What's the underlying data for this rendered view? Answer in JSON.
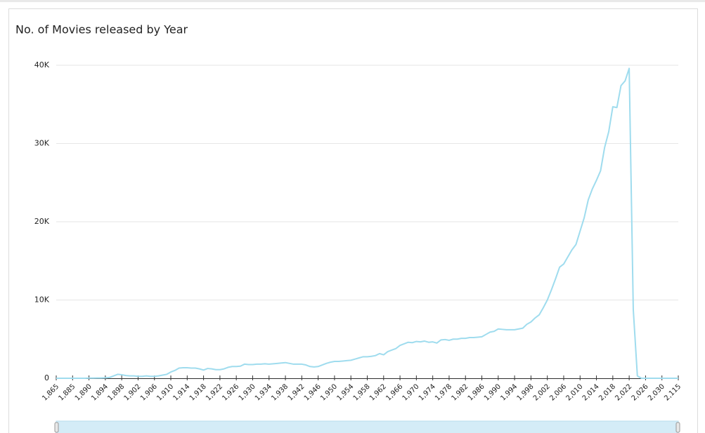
{
  "chart_data": {
    "type": "line",
    "title": "No. of Movies released by Year",
    "categories": [
      "1,865",
      null,
      null,
      null,
      "1,885",
      null,
      null,
      null,
      "1,890",
      null,
      null,
      null,
      "1,894",
      null,
      null,
      null,
      "1,898",
      null,
      null,
      null,
      "1,902",
      null,
      null,
      null,
      "1,906",
      null,
      null,
      null,
      "1,910",
      null,
      null,
      null,
      "1,914",
      null,
      null,
      null,
      "1,918",
      null,
      null,
      null,
      "1,922",
      null,
      null,
      null,
      "1,926",
      null,
      null,
      null,
      "1,930",
      null,
      null,
      null,
      "1,934",
      null,
      null,
      null,
      "1,938",
      null,
      null,
      null,
      "1,942",
      null,
      null,
      null,
      "1,946",
      null,
      null,
      null,
      "1,950",
      null,
      null,
      null,
      "1,954",
      null,
      null,
      null,
      "1,958",
      null,
      null,
      null,
      "1,962",
      null,
      null,
      null,
      "1,966",
      null,
      null,
      null,
      "1,970",
      null,
      null,
      null,
      "1,974",
      null,
      null,
      null,
      "1,978",
      null,
      null,
      null,
      "1,982",
      null,
      null,
      null,
      "1,986",
      null,
      null,
      null,
      "1,990",
      null,
      null,
      null,
      "1,994",
      null,
      null,
      null,
      "1,998",
      null,
      null,
      null,
      "2,002",
      null,
      null,
      null,
      "2,006",
      null,
      null,
      null,
      "2,010",
      null,
      null,
      null,
      "2,014",
      null,
      null,
      null,
      "2,018",
      null,
      null,
      null,
      "2,022",
      null,
      null,
      null,
      "2,026",
      null,
      null,
      null,
      "2,030",
      null,
      null,
      null,
      "2,115"
    ],
    "values": [
      0,
      0,
      0,
      0,
      0,
      0,
      0,
      0,
      20,
      20,
      30,
      30,
      60,
      100,
      300,
      500,
      450,
      350,
      300,
      300,
      250,
      250,
      300,
      250,
      250,
      300,
      400,
      500,
      800,
      1000,
      1300,
      1350,
      1350,
      1300,
      1300,
      1200,
      1050,
      1250,
      1200,
      1100,
      1100,
      1200,
      1400,
      1500,
      1500,
      1550,
      1800,
      1750,
      1750,
      1800,
      1800,
      1850,
      1800,
      1850,
      1900,
      1950,
      2000,
      1900,
      1800,
      1800,
      1800,
      1700,
      1500,
      1450,
      1500,
      1700,
      1900,
      2050,
      2150,
      2150,
      2200,
      2250,
      2300,
      2450,
      2600,
      2750,
      2750,
      2800,
      2900,
      3150,
      3000,
      3400,
      3600,
      3800,
      4200,
      4400,
      4600,
      4550,
      4700,
      4650,
      4750,
      4600,
      4650,
      4500,
      4900,
      4950,
      4850,
      5000,
      5000,
      5100,
      5100,
      5200,
      5200,
      5250,
      5300,
      5600,
      5900,
      6000,
      6300,
      6250,
      6200,
      6200,
      6200,
      6300,
      6400,
      6900,
      7200,
      7700,
      8100,
      9000,
      10000,
      11300,
      12700,
      14200,
      14600,
      15500,
      16400,
      17100,
      18800,
      20500,
      22800,
      24200,
      25300,
      26500,
      29500,
      31500,
      34700,
      34600,
      37400,
      38000,
      39600,
      8800,
      300,
      0,
      0,
      0,
      0,
      0,
      0,
      0,
      0,
      0,
      0
    ],
    "color": "#9fdcee",
    "ylim": [
      0,
      40000
    ],
    "yticks": [
      0,
      {
        "value": 10000,
        "label": "10K"
      },
      {
        "value": 20000,
        "label": "20K"
      },
      {
        "value": 30000,
        "label": "30K"
      },
      {
        "value": 40000,
        "label": "40K"
      }
    ],
    "grid": true
  }
}
